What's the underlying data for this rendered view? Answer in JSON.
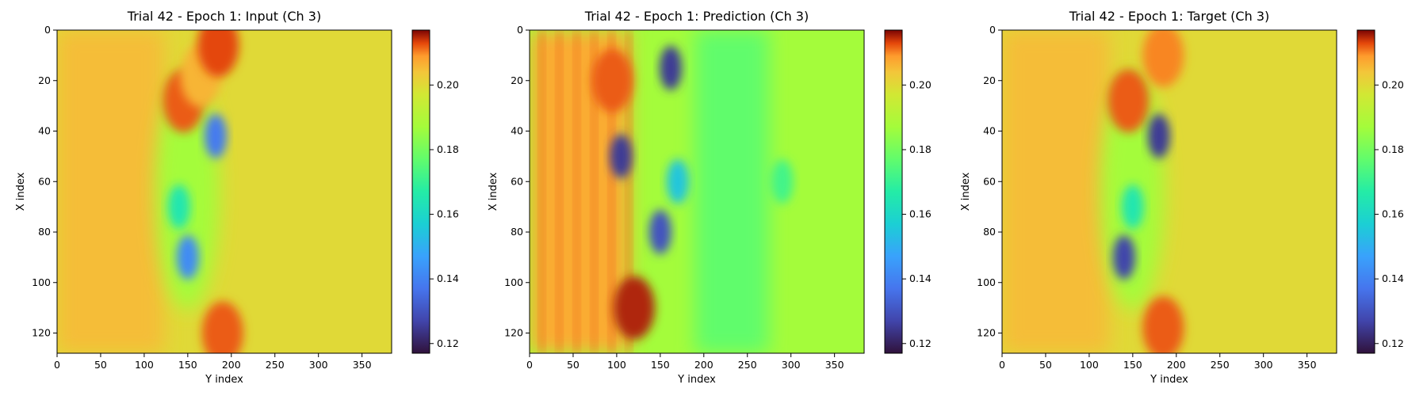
{
  "chart_data": [
    {
      "type": "heatmap",
      "title": "Trial 42 - Epoch 1: Input (Ch 3)",
      "xlabel": "Y index",
      "ylabel": "X index",
      "xlim": [
        0,
        384
      ],
      "ylim": [
        128,
        0
      ],
      "xticks": [
        "0",
        "50",
        "100",
        "150",
        "200",
        "250",
        "300",
        "350"
      ],
      "yticks": [
        "0",
        "20",
        "40",
        "60",
        "80",
        "100",
        "120"
      ],
      "colorbar": {
        "range": [
          0.117,
          0.217
        ],
        "ticks": [
          "0.12",
          "0.14",
          "0.16",
          "0.18",
          "0.20"
        ],
        "colormap": "turbo"
      },
      "features": [
        {
          "x": 145,
          "y": 28,
          "value": 0.212
        },
        {
          "x": 165,
          "y": 18,
          "value": 0.206
        },
        {
          "x": 185,
          "y": 6,
          "value": 0.213
        },
        {
          "x": 182,
          "y": 42,
          "value": 0.138
        },
        {
          "x": 150,
          "y": 90,
          "value": 0.142
        },
        {
          "x": 140,
          "y": 70,
          "value": 0.165
        },
        {
          "x": 190,
          "y": 120,
          "value": 0.212
        }
      ]
    },
    {
      "type": "heatmap",
      "title": "Trial 42 - Epoch 1: Prediction (Ch 3)",
      "xlabel": "Y index",
      "ylabel": "X index",
      "xlim": [
        0,
        384
      ],
      "ylim": [
        128,
        0
      ],
      "xticks": [
        "0",
        "50",
        "100",
        "150",
        "200",
        "250",
        "300",
        "350"
      ],
      "yticks": [
        "0",
        "20",
        "40",
        "60",
        "80",
        "100",
        "120"
      ],
      "colorbar": {
        "range": [
          0.117,
          0.217
        ],
        "ticks": [
          "0.12",
          "0.14",
          "0.16",
          "0.18",
          "0.20"
        ],
        "colormap": "turbo"
      },
      "features": [
        {
          "x": 162,
          "y": 15,
          "value": 0.125
        },
        {
          "x": 105,
          "y": 50,
          "value": 0.125
        },
        {
          "x": 150,
          "y": 80,
          "value": 0.13
        },
        {
          "x": 120,
          "y": 110,
          "value": 0.215
        },
        {
          "x": 95,
          "y": 20,
          "value": 0.212
        },
        {
          "x": 170,
          "y": 60,
          "value": 0.155
        },
        {
          "x": 290,
          "y": 60,
          "value": 0.172
        }
      ]
    },
    {
      "type": "heatmap",
      "title": "Trial 42 - Epoch 1: Target (Ch 3)",
      "xlabel": "Y index",
      "ylabel": "X index",
      "xlim": [
        0,
        384
      ],
      "ylim": [
        128,
        0
      ],
      "xticks": [
        "0",
        "50",
        "100",
        "150",
        "200",
        "250",
        "300",
        "350"
      ],
      "yticks": [
        "0",
        "20",
        "40",
        "60",
        "80",
        "100",
        "120"
      ],
      "colorbar": {
        "range": [
          0.117,
          0.217
        ],
        "ticks": [
          "0.12",
          "0.14",
          "0.16",
          "0.18",
          "0.20"
        ],
        "colormap": "turbo"
      },
      "features": [
        {
          "x": 145,
          "y": 28,
          "value": 0.212
        },
        {
          "x": 185,
          "y": 10,
          "value": 0.21
        },
        {
          "x": 180,
          "y": 42,
          "value": 0.125
        },
        {
          "x": 140,
          "y": 90,
          "value": 0.127
        },
        {
          "x": 150,
          "y": 70,
          "value": 0.165
        },
        {
          "x": 185,
          "y": 118,
          "value": 0.212
        }
      ]
    }
  ]
}
